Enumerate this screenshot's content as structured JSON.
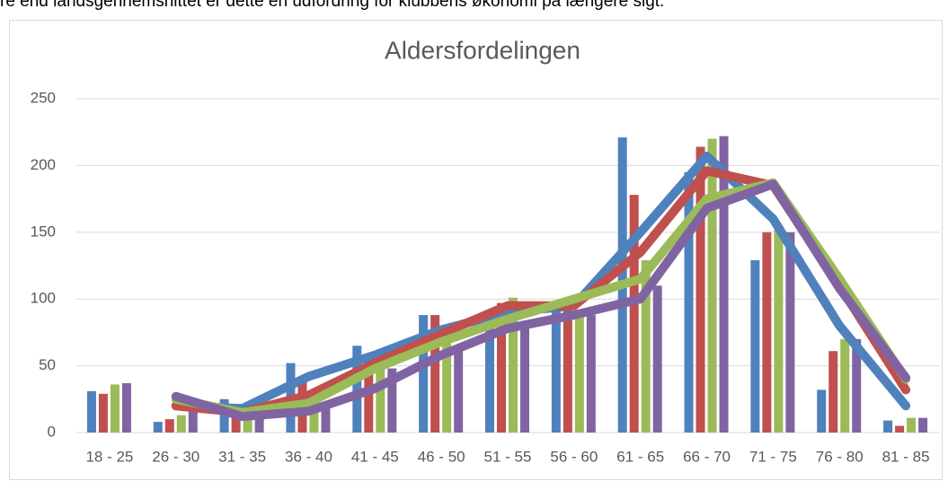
{
  "header_text": "re end landsgennemsnittet er dette en udfordring for klubbens økonomi på længere sigt.",
  "chart_data": {
    "type": "combo",
    "title": "Aldersfordelingen",
    "categories": [
      "18 - 25",
      "26 - 30",
      "31 - 35",
      "36 - 40",
      "41 - 45",
      "46 - 50",
      "51 - 55",
      "56 - 60",
      "61 - 65",
      "66 - 70",
      "71 - 75",
      "76 - 80",
      "81 - 85"
    ],
    "ylim": [
      0,
      250
    ],
    "yticks": [
      0,
      50,
      100,
      150,
      200,
      250
    ],
    "grid": true,
    "series": [
      {
        "type": "bar",
        "color": "#4f81bd",
        "values": [
          31,
          8,
          25,
          52,
          65,
          88,
          90,
          92,
          221,
          195,
          129,
          32,
          9
        ]
      },
      {
        "type": "bar",
        "color": "#c0504d",
        "values": [
          29,
          10,
          15,
          38,
          45,
          88,
          97,
          95,
          178,
          214,
          150,
          61,
          5
        ]
      },
      {
        "type": "bar",
        "color": "#9bbb59",
        "values": [
          36,
          13,
          16,
          28,
          50,
          72,
          101,
          92,
          129,
          220,
          152,
          70,
          11
        ]
      },
      {
        "type": "bar",
        "color": "#8064a2",
        "values": [
          37,
          18,
          18,
          22,
          48,
          65,
          80,
          88,
          110,
          222,
          150,
          70,
          11
        ]
      },
      {
        "type": "line",
        "color": "#4f81bd",
        "values": [
          null,
          20,
          18,
          42,
          58,
          77,
          90,
          95,
          150,
          207,
          160,
          80,
          20
        ]
      },
      {
        "type": "line",
        "color": "#c0504d",
        "values": [
          null,
          20,
          15,
          28,
          52,
          74,
          95,
          95,
          135,
          196,
          185,
          110,
          32
        ]
      },
      {
        "type": "line",
        "color": "#9bbb59",
        "values": [
          null,
          25,
          15,
          22,
          48,
          68,
          85,
          100,
          115,
          175,
          187,
          115,
          40
        ]
      },
      {
        "type": "line",
        "color": "#8064a2",
        "values": [
          null,
          27,
          12,
          16,
          33,
          58,
          78,
          88,
          100,
          168,
          186,
          108,
          41
        ]
      }
    ]
  }
}
